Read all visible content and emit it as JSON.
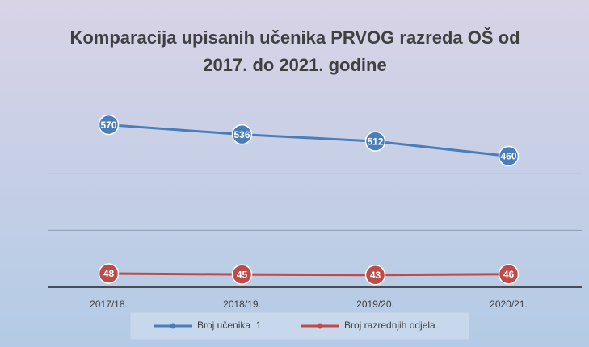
{
  "chart_data": {
    "type": "line",
    "title": "Komparacija upisanih učenika PRVOG razreda OŠ od 2017. do 2021. godine",
    "categories": [
      "2017/18.",
      "2018/19.",
      "2019/20.",
      "2020/21."
    ],
    "series": [
      {
        "name": "Broj učenika  1",
        "color": "#4a7ebb",
        "values": [
          570,
          536,
          512,
          460
        ]
      },
      {
        "name": "Broj razrednjih odjela",
        "color": "#be4b48",
        "values": [
          48,
          45,
          43,
          46
        ]
      }
    ],
    "ylim": [
      0,
      600
    ],
    "yticks": [
      0,
      200,
      400
    ],
    "grid": true,
    "legend": "bottom"
  }
}
